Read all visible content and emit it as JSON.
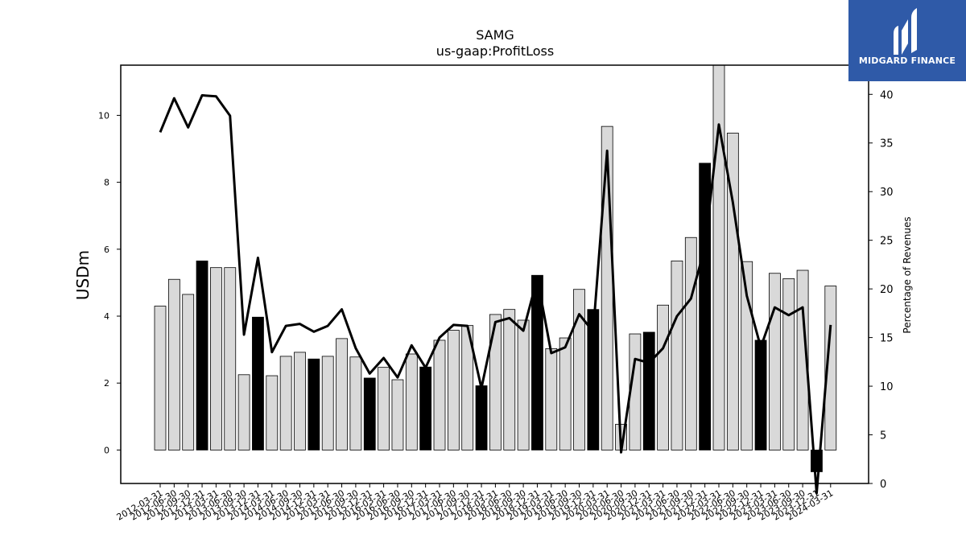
{
  "brand": {
    "name": "MIDGARD FINANCE",
    "icon": "midgard-logo-icon",
    "color": "#2f5aa8"
  },
  "chart_data": {
    "type": "bar",
    "title": "SAMG",
    "subtitle": "us-gaap:ProfitLoss",
    "ylabel": "USDm",
    "y2label": "Percentage of Revenues",
    "ylim": [
      -1.0,
      11.5
    ],
    "y2lim": [
      0,
      43
    ],
    "yticks": [
      "0",
      "2",
      "4",
      "6",
      "8",
      "10"
    ],
    "y2ticks": [
      "0",
      "5",
      "10",
      "15",
      "20",
      "25",
      "30",
      "35",
      "40"
    ],
    "categories": [
      "2012-03-31",
      "2012-06-30",
      "2012-09-30",
      "2012-12-31",
      "2013-03-31",
      "2013-06-30",
      "2013-09-30",
      "2013-12-31",
      "2014-03-31",
      "2014-06-30",
      "2014-09-30",
      "2014-12-31",
      "2015-03-31",
      "2015-06-30",
      "2015-09-30",
      "2015-12-31",
      "2016-03-31",
      "2016-06-30",
      "2016-09-30",
      "2016-12-31",
      "2017-03-31",
      "2017-06-30",
      "2017-09-30",
      "2017-12-31",
      "2018-03-31",
      "2018-06-30",
      "2018-09-30",
      "2018-12-31",
      "2019-03-31",
      "2019-06-30",
      "2019-09-30",
      "2019-12-31",
      "2020-03-31",
      "2020-06-30",
      "2020-09-30",
      "2020-12-31",
      "2021-03-31",
      "2021-06-30",
      "2021-09-30",
      "2021-12-31",
      "2022-03-31",
      "2022-06-30",
      "2022-09-30",
      "2022-12-31",
      "2023-03-31",
      "2023-06-30",
      "2023-09-30",
      "2023-12-31",
      "2024-03-31"
    ],
    "series": [
      {
        "kind": "bar",
        "axis": "left",
        "values": [
          4.3,
          5.1,
          4.65,
          5.65,
          5.45,
          5.45,
          2.25,
          3.97,
          2.22,
          2.8,
          2.92,
          2.72,
          2.8,
          3.33,
          2.78,
          2.15,
          2.47,
          2.1,
          2.87,
          2.48,
          3.28,
          3.58,
          3.72,
          1.92,
          4.05,
          4.2,
          3.88,
          5.22,
          3.03,
          3.35,
          4.8,
          4.2,
          9.67,
          0.77,
          3.47,
          3.52,
          4.33,
          5.65,
          6.35,
          8.57,
          11.5,
          9.47,
          5.63,
          3.28,
          5.28,
          5.12,
          5.37,
          -0.65,
          4.9
        ],
        "highlight": [
          3,
          7,
          11,
          15,
          19,
          23,
          27,
          31,
          35,
          39,
          43,
          47
        ],
        "colors": {
          "normal": "#d9d9d9",
          "highlight": "#000000"
        }
      },
      {
        "kind": "line",
        "axis": "right",
        "color": "#000000",
        "values": [
          36.1,
          39.6,
          36.6,
          39.9,
          39.8,
          37.8,
          15.3,
          23.2,
          13.5,
          16.2,
          16.4,
          15.6,
          16.2,
          17.9,
          13.9,
          11.3,
          12.9,
          10.9,
          14.2,
          11.9,
          15.0,
          16.3,
          16.2,
          9.8,
          16.6,
          17.0,
          15.7,
          21.1,
          13.4,
          14.0,
          17.4,
          15.6,
          34.2,
          3.2,
          12.8,
          12.4,
          13.9,
          17.2,
          19.0,
          24.3,
          36.9,
          28.9,
          19.3,
          14.0,
          18.1,
          17.3,
          18.1,
          -1.0,
          16.3
        ]
      }
    ]
  }
}
